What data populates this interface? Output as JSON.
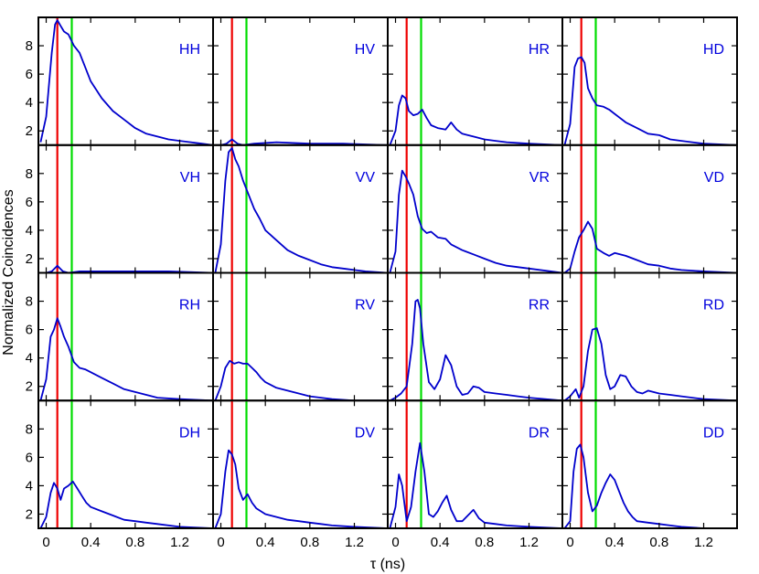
{
  "chart_data": {
    "type": "line",
    "xlabel": "τ (ns)",
    "ylabel": "Normalized Coincidences",
    "xlim": [
      -0.07,
      1.5
    ],
    "ylim": [
      1,
      10
    ],
    "xticks": [
      0,
      0.4,
      0.8,
      1.2
    ],
    "xtick_labels": [
      "0",
      "0.4",
      "0.8",
      "1.2"
    ],
    "yticks": [
      2,
      4,
      6,
      8
    ],
    "ytick_labels": [
      "2",
      "4",
      "6",
      "8"
    ],
    "grid": false,
    "vertical_lines": [
      {
        "x": 0.1,
        "color": "#ee0000"
      },
      {
        "x": 0.23,
        "color": "#00dd00"
      }
    ],
    "line_color": "#0000cc",
    "label_color": "#0000dd",
    "rows": [
      "H",
      "V",
      "R",
      "D"
    ],
    "cols": [
      "H",
      "V",
      "R",
      "D"
    ],
    "panels": [
      {
        "label": "HH",
        "x": [
          -0.05,
          0.0,
          0.05,
          0.08,
          0.1,
          0.13,
          0.16,
          0.2,
          0.25,
          0.3,
          0.35,
          0.4,
          0.5,
          0.6,
          0.7,
          0.8,
          0.9,
          1.0,
          1.1,
          1.2,
          1.3,
          1.4,
          1.5
        ],
        "y": [
          1.2,
          3.0,
          7.5,
          9.5,
          9.8,
          9.4,
          9.0,
          8.8,
          8.0,
          7.5,
          6.5,
          5.5,
          4.3,
          3.4,
          2.8,
          2.2,
          1.8,
          1.6,
          1.4,
          1.3,
          1.2,
          1.1,
          1.0
        ]
      },
      {
        "label": "HV",
        "x": [
          -0.05,
          0.0,
          0.05,
          0.1,
          0.15,
          0.2,
          0.3,
          0.5,
          0.8,
          1.1,
          1.5
        ],
        "y": [
          1.0,
          1.0,
          1.1,
          1.4,
          1.1,
          1.0,
          1.1,
          1.2,
          1.1,
          1.1,
          1.0
        ]
      },
      {
        "label": "HR",
        "x": [
          -0.05,
          0.0,
          0.03,
          0.06,
          0.09,
          0.12,
          0.16,
          0.2,
          0.24,
          0.28,
          0.32,
          0.38,
          0.45,
          0.5,
          0.55,
          0.6,
          0.7,
          0.8,
          0.9,
          1.0,
          1.2,
          1.5
        ],
        "y": [
          1.0,
          2.0,
          3.8,
          4.5,
          4.3,
          3.4,
          3.1,
          3.2,
          3.5,
          2.9,
          2.4,
          2.2,
          2.1,
          2.6,
          2.1,
          1.8,
          1.6,
          1.4,
          1.3,
          1.2,
          1.1,
          1.0
        ]
      },
      {
        "label": "HD",
        "x": [
          -0.05,
          0.0,
          0.04,
          0.07,
          0.1,
          0.13,
          0.16,
          0.2,
          0.24,
          0.3,
          0.35,
          0.4,
          0.5,
          0.6,
          0.7,
          0.8,
          0.9,
          1.0,
          1.2,
          1.5
        ],
        "y": [
          1.0,
          2.5,
          6.5,
          7.1,
          7.2,
          6.8,
          5.0,
          4.3,
          3.8,
          3.7,
          3.5,
          3.2,
          2.6,
          2.2,
          1.8,
          1.7,
          1.4,
          1.3,
          1.1,
          1.0
        ]
      },
      {
        "label": "VH",
        "x": [
          -0.05,
          0.0,
          0.05,
          0.1,
          0.15,
          0.2,
          0.3,
          0.5,
          0.8,
          1.1,
          1.5
        ],
        "y": [
          1.0,
          1.0,
          1.1,
          1.5,
          1.1,
          1.0,
          1.1,
          1.1,
          1.1,
          1.1,
          1.0
        ]
      },
      {
        "label": "VV",
        "x": [
          -0.05,
          0.0,
          0.04,
          0.07,
          0.1,
          0.13,
          0.16,
          0.2,
          0.25,
          0.3,
          0.35,
          0.4,
          0.5,
          0.6,
          0.7,
          0.8,
          0.9,
          1.0,
          1.1,
          1.2,
          1.3,
          1.5
        ],
        "y": [
          1.0,
          3.0,
          7.5,
          9.5,
          9.8,
          9.0,
          8.5,
          7.5,
          6.5,
          5.5,
          4.8,
          4.0,
          3.3,
          2.6,
          2.2,
          1.9,
          1.6,
          1.4,
          1.3,
          1.2,
          1.1,
          1.0
        ]
      },
      {
        "label": "VR",
        "x": [
          -0.05,
          0.0,
          0.03,
          0.06,
          0.09,
          0.12,
          0.16,
          0.2,
          0.24,
          0.28,
          0.32,
          0.38,
          0.45,
          0.5,
          0.6,
          0.7,
          0.8,
          0.9,
          1.0,
          1.2,
          1.5
        ],
        "y": [
          1.0,
          2.5,
          6.5,
          8.2,
          7.8,
          7.3,
          6.5,
          5.0,
          4.1,
          3.8,
          3.9,
          3.5,
          3.4,
          3.0,
          2.6,
          2.3,
          2.0,
          1.7,
          1.5,
          1.3,
          1.0
        ]
      },
      {
        "label": "VD",
        "x": [
          -0.05,
          0.0,
          0.04,
          0.08,
          0.12,
          0.16,
          0.2,
          0.24,
          0.3,
          0.35,
          0.4,
          0.5,
          0.6,
          0.7,
          0.8,
          0.9,
          1.0,
          1.2,
          1.5
        ],
        "y": [
          1.0,
          1.3,
          2.5,
          3.5,
          4.0,
          4.6,
          4.1,
          2.7,
          2.4,
          2.2,
          2.4,
          2.2,
          1.9,
          1.6,
          1.5,
          1.3,
          1.2,
          1.1,
          1.0
        ]
      },
      {
        "label": "RH",
        "x": [
          -0.05,
          0.0,
          0.04,
          0.07,
          0.1,
          0.13,
          0.16,
          0.2,
          0.25,
          0.3,
          0.35,
          0.4,
          0.5,
          0.6,
          0.7,
          0.8,
          0.9,
          1.0,
          1.2,
          1.5
        ],
        "y": [
          1.0,
          2.5,
          5.5,
          6.0,
          6.8,
          6.2,
          5.5,
          4.8,
          3.7,
          3.3,
          3.2,
          3.0,
          2.6,
          2.2,
          1.8,
          1.6,
          1.4,
          1.2,
          1.1,
          1.0
        ]
      },
      {
        "label": "RV",
        "x": [
          -0.05,
          0.0,
          0.04,
          0.08,
          0.12,
          0.16,
          0.2,
          0.24,
          0.28,
          0.32,
          0.36,
          0.4,
          0.5,
          0.6,
          0.7,
          0.8,
          0.9,
          1.0,
          1.2,
          1.5
        ],
        "y": [
          1.0,
          2.0,
          3.3,
          3.8,
          3.6,
          3.7,
          3.6,
          3.6,
          3.3,
          3.0,
          2.6,
          2.3,
          1.9,
          1.7,
          1.5,
          1.3,
          1.2,
          1.1,
          1.0,
          1.0
        ]
      },
      {
        "label": "RR",
        "x": [
          -0.05,
          0.0,
          0.05,
          0.1,
          0.15,
          0.18,
          0.2,
          0.22,
          0.25,
          0.3,
          0.35,
          0.4,
          0.45,
          0.5,
          0.55,
          0.6,
          0.65,
          0.7,
          0.75,
          0.8,
          0.9,
          1.0,
          1.1,
          1.2,
          1.5
        ],
        "y": [
          1.0,
          1.2,
          1.5,
          2.0,
          5.0,
          8.0,
          8.1,
          7.5,
          5.0,
          2.3,
          1.8,
          2.5,
          4.2,
          3.5,
          2.0,
          1.4,
          1.5,
          2.0,
          1.9,
          1.6,
          1.5,
          1.4,
          1.3,
          1.2,
          1.0
        ]
      },
      {
        "label": "RD",
        "x": [
          -0.05,
          0.0,
          0.05,
          0.08,
          0.12,
          0.16,
          0.2,
          0.24,
          0.28,
          0.32,
          0.36,
          0.4,
          0.45,
          0.5,
          0.55,
          0.6,
          0.65,
          0.7,
          0.8,
          0.9,
          1.0,
          1.2,
          1.5
        ],
        "y": [
          1.0,
          1.3,
          1.8,
          1.2,
          2.0,
          4.5,
          6.0,
          6.1,
          5.0,
          2.8,
          1.8,
          2.0,
          2.8,
          2.7,
          2.0,
          1.6,
          1.5,
          1.7,
          1.5,
          1.4,
          1.3,
          1.1,
          1.0
        ]
      },
      {
        "label": "DH",
        "x": [
          -0.05,
          0.0,
          0.04,
          0.07,
          0.1,
          0.13,
          0.16,
          0.2,
          0.24,
          0.28,
          0.32,
          0.36,
          0.4,
          0.5,
          0.6,
          0.7,
          0.8,
          0.9,
          1.0,
          1.2,
          1.5
        ],
        "y": [
          1.0,
          1.8,
          3.5,
          4.2,
          3.8,
          3.0,
          3.8,
          4.0,
          4.3,
          3.8,
          3.3,
          2.8,
          2.5,
          2.2,
          1.9,
          1.6,
          1.5,
          1.4,
          1.3,
          1.1,
          1.0
        ]
      },
      {
        "label": "DV",
        "x": [
          -0.05,
          0.0,
          0.04,
          0.07,
          0.1,
          0.13,
          0.16,
          0.2,
          0.24,
          0.28,
          0.32,
          0.36,
          0.4,
          0.5,
          0.6,
          0.7,
          0.8,
          0.9,
          1.0,
          1.2,
          1.5
        ],
        "y": [
          1.0,
          2.0,
          5.0,
          6.5,
          6.2,
          5.5,
          3.8,
          3.0,
          3.4,
          2.8,
          2.4,
          2.2,
          2.0,
          1.8,
          1.6,
          1.5,
          1.4,
          1.3,
          1.2,
          1.1,
          1.0
        ]
      },
      {
        "label": "DR",
        "x": [
          -0.05,
          0.0,
          0.03,
          0.06,
          0.1,
          0.14,
          0.18,
          0.22,
          0.26,
          0.3,
          0.34,
          0.38,
          0.42,
          0.46,
          0.5,
          0.55,
          0.6,
          0.65,
          0.7,
          0.75,
          0.8,
          0.9,
          1.0,
          1.2,
          1.5
        ],
        "y": [
          1.0,
          2.5,
          4.8,
          4.0,
          1.5,
          2.5,
          5.0,
          7.0,
          5.0,
          2.0,
          1.8,
          2.2,
          2.8,
          3.3,
          2.3,
          1.5,
          1.5,
          1.9,
          2.3,
          1.7,
          1.4,
          1.3,
          1.2,
          1.1,
          1.0
        ]
      },
      {
        "label": "DD",
        "x": [
          -0.05,
          0.0,
          0.03,
          0.06,
          0.09,
          0.12,
          0.16,
          0.2,
          0.24,
          0.28,
          0.32,
          0.36,
          0.4,
          0.44,
          0.48,
          0.52,
          0.56,
          0.6,
          0.7,
          0.8,
          0.9,
          1.0,
          1.2,
          1.5
        ],
        "y": [
          1.0,
          1.5,
          5.0,
          6.6,
          6.9,
          6.0,
          3.5,
          2.2,
          2.6,
          3.5,
          4.2,
          4.8,
          4.4,
          3.6,
          2.8,
          2.2,
          1.8,
          1.5,
          1.4,
          1.3,
          1.2,
          1.1,
          1.0,
          1.0
        ]
      }
    ]
  }
}
